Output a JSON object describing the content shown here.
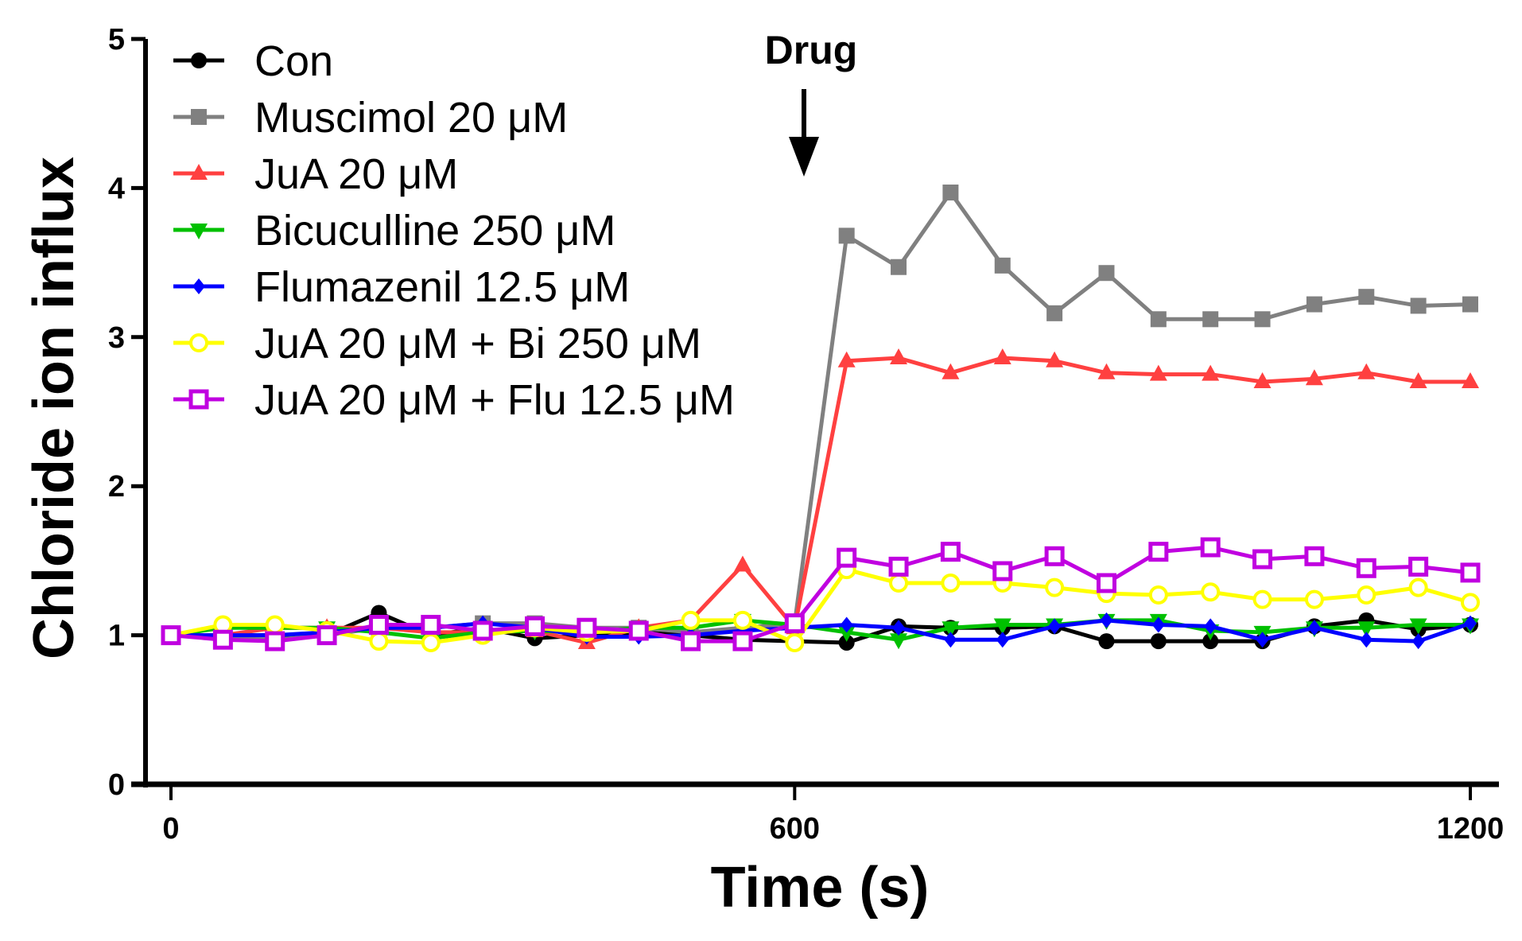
{
  "chart_data": {
    "type": "line",
    "title": "",
    "xlabel": "Time (s)",
    "ylabel": "Chloride ion influx",
    "ylim": [
      0,
      5
    ],
    "xlim": [
      0,
      1200
    ],
    "yticks": [
      "0",
      "1",
      "2",
      "3",
      "4",
      "5"
    ],
    "xticks": [
      {
        "label": "0",
        "index": 0
      },
      {
        "label": "600",
        "index": 12
      },
      {
        "label": "1200",
        "index": 25
      }
    ],
    "annotation": {
      "text": "Drug",
      "at_time": 600
    },
    "legend_position": "top-left",
    "x": [
      0,
      50,
      100,
      150,
      200,
      250,
      300,
      350,
      400,
      450,
      500,
      550,
      600,
      646,
      692,
      738,
      785,
      831,
      877,
      923,
      969,
      1015,
      1062,
      1108,
      1154,
      1200
    ],
    "series": [
      {
        "name": "Con",
        "color": "#000000",
        "marker": "circle",
        "values": [
          1.0,
          1.0,
          1.0,
          1.0,
          1.15,
          1.0,
          1.05,
          0.98,
          1.0,
          1.02,
          1.0,
          0.97,
          0.96,
          0.95,
          1.06,
          1.05,
          1.05,
          1.06,
          0.96,
          0.96,
          0.96,
          0.96,
          1.06,
          1.1,
          1.04,
          1.07
        ]
      },
      {
        "name": "Muscimol 20 μM",
        "color": "#808080",
        "marker": "square",
        "values": [
          1.0,
          0.98,
          0.97,
          1.0,
          1.05,
          1.05,
          1.08,
          1.08,
          1.05,
          1.05,
          1.02,
          1.05,
          1.08,
          3.68,
          3.47,
          3.97,
          3.48,
          3.16,
          3.43,
          3.12,
          3.12,
          3.12,
          3.22,
          3.27,
          3.21,
          3.22
        ]
      },
      {
        "name": "JuA 20 μM",
        "color": "#ff4040",
        "marker": "triangle-up",
        "values": [
          1.0,
          1.0,
          1.05,
          1.05,
          1.05,
          1.02,
          1.02,
          1.03,
          0.95,
          1.05,
          1.1,
          1.47,
          1.05,
          2.84,
          2.86,
          2.76,
          2.86,
          2.84,
          2.76,
          2.75,
          2.75,
          2.7,
          2.72,
          2.76,
          2.7,
          2.7
        ]
      },
      {
        "name": "Bicuculline 250 μM",
        "color": "#00c000",
        "marker": "triangle-down",
        "values": [
          1.0,
          1.05,
          1.05,
          1.05,
          1.02,
          0.98,
          1.02,
          1.03,
          1.02,
          1.05,
          1.05,
          1.1,
          1.07,
          1.02,
          0.97,
          1.05,
          1.07,
          1.07,
          1.1,
          1.1,
          1.03,
          1.02,
          1.05,
          1.05,
          1.07,
          1.07
        ]
      },
      {
        "name": "Flumazenil 12.5 μM",
        "color": "#0000ff",
        "marker": "diamond",
        "values": [
          1.0,
          1.0,
          1.0,
          1.02,
          1.05,
          1.05,
          1.08,
          1.05,
          0.99,
          0.99,
          1.0,
          1.03,
          1.05,
          1.07,
          1.05,
          0.97,
          0.97,
          1.06,
          1.1,
          1.07,
          1.06,
          0.97,
          1.05,
          0.97,
          0.96,
          1.08
        ]
      },
      {
        "name": "JuA 20 μM + Bi 250 μM",
        "color": "#ffff00",
        "marker": "open-circle",
        "values": [
          1.0,
          1.07,
          1.07,
          1.03,
          0.96,
          0.95,
          1.0,
          1.05,
          1.02,
          1.03,
          1.1,
          1.1,
          0.95,
          1.44,
          1.35,
          1.35,
          1.35,
          1.32,
          1.28,
          1.27,
          1.29,
          1.24,
          1.24,
          1.27,
          1.32,
          1.22
        ]
      },
      {
        "name": "JuA 20 μM + Flu 12.5 μM",
        "color": "#c000e0",
        "marker": "open-square",
        "values": [
          1.0,
          0.97,
          0.96,
          1.0,
          1.07,
          1.07,
          1.03,
          1.06,
          1.05,
          1.03,
          0.96,
          0.96,
          1.08,
          1.52,
          1.46,
          1.56,
          1.43,
          1.53,
          1.35,
          1.56,
          1.59,
          1.51,
          1.53,
          1.45,
          1.46,
          1.42
        ]
      }
    ]
  }
}
